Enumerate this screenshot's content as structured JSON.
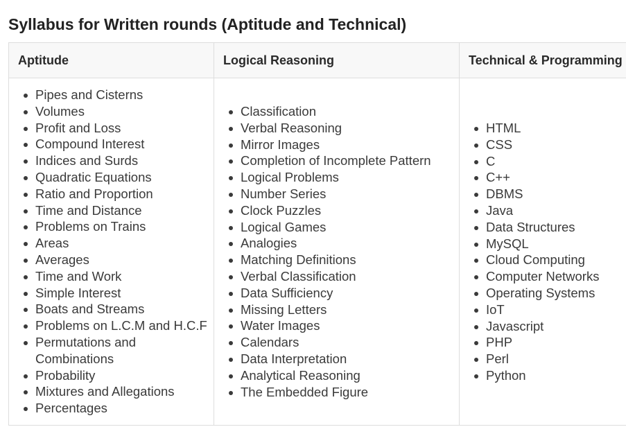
{
  "title": "Syllabus for Written rounds (Aptitude and Technical)",
  "columns": [
    {
      "header": "Aptitude",
      "items": [
        "Pipes and Cisterns",
        "Volumes",
        "Profit and Loss",
        "Compound Interest",
        "Indices and Surds",
        "Quadratic Equations",
        "Ratio and Proportion",
        "Time and Distance",
        "Problems on Trains",
        "Areas",
        "Averages",
        "Time and Work",
        "Simple Interest",
        "Boats and Streams",
        "Problems on L.C.M and H.C.F",
        "Permutations and",
        "Probability",
        "Mixtures and Allegations",
        "Percentages"
      ],
      "wrapped_continuation": "Combinations"
    },
    {
      "header": "Logical Reasoning",
      "items": [
        "Classification",
        "Verbal Reasoning",
        "Mirror Images",
        "Completion of Incomplete Pattern",
        "Logical Problems",
        "Number Series",
        "Clock Puzzles",
        "Logical Games",
        "Analogies",
        "Matching Definitions",
        "Verbal Classification",
        "Data Sufficiency",
        "Missing Letters",
        "Water Images",
        "Calendars",
        "Data Interpretation",
        "Analytical Reasoning",
        "The Embedded Figure"
      ]
    },
    {
      "header": "Technical & Programming",
      "items": [
        "HTML",
        "CSS",
        "C",
        "C++",
        "DBMS",
        "Java",
        "Data Structures",
        "MySQL",
        "Cloud Computing",
        "Computer Networks",
        "Operating Systems",
        "IoT",
        "Javascript",
        "PHP",
        "Perl",
        "Python"
      ]
    }
  ]
}
